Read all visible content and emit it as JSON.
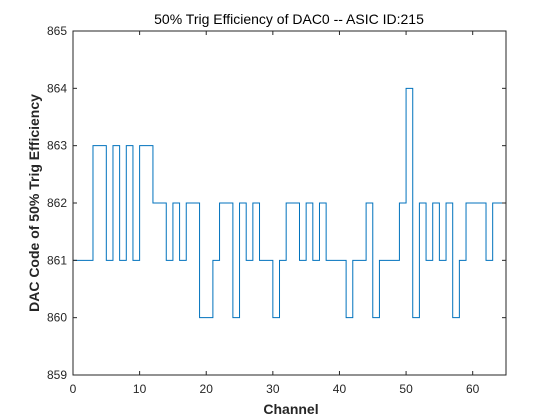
{
  "chart_data": {
    "type": "line",
    "step": true,
    "title": "50% Trig Efficiency of DAC0 -- ASIC ID:215",
    "xlabel": "Channel",
    "ylabel": "DAC Code of 50% Trig Efficiency",
    "xlim": [
      0,
      65
    ],
    "ylim": [
      859,
      865
    ],
    "xticks": [
      0,
      10,
      20,
      30,
      40,
      50,
      60
    ],
    "yticks": [
      859,
      860,
      861,
      862,
      863,
      864,
      865
    ],
    "grid": false,
    "line_color": "#0072BD",
    "series": [
      {
        "x": [
          0,
          1,
          2,
          3,
          4,
          5,
          6,
          7,
          8,
          9,
          10,
          11,
          12,
          13,
          14,
          15,
          16,
          17,
          18,
          19,
          20,
          21,
          22,
          23,
          24,
          25,
          26,
          27,
          28,
          29,
          30,
          31,
          32,
          33,
          34,
          35,
          36,
          37,
          38,
          39,
          40,
          41,
          42,
          43,
          44,
          45,
          46,
          47,
          48,
          49,
          50,
          51,
          52,
          53,
          54,
          55,
          56,
          57,
          58,
          59,
          60,
          61,
          62,
          63,
          64
        ],
        "values": [
          861,
          861,
          861,
          863,
          863,
          861,
          863,
          861,
          863,
          861,
          863,
          863,
          862,
          862,
          861,
          862,
          861,
          862,
          862,
          860,
          860,
          861,
          862,
          862,
          860,
          862,
          861,
          862,
          861,
          861,
          860,
          861,
          862,
          862,
          861,
          862,
          861,
          862,
          861,
          861,
          861,
          860,
          861,
          861,
          862,
          860,
          861,
          861,
          861,
          862,
          864,
          860,
          862,
          861,
          862,
          861,
          862,
          860,
          861,
          862,
          862,
          862,
          861,
          862,
          862
        ]
      }
    ]
  }
}
